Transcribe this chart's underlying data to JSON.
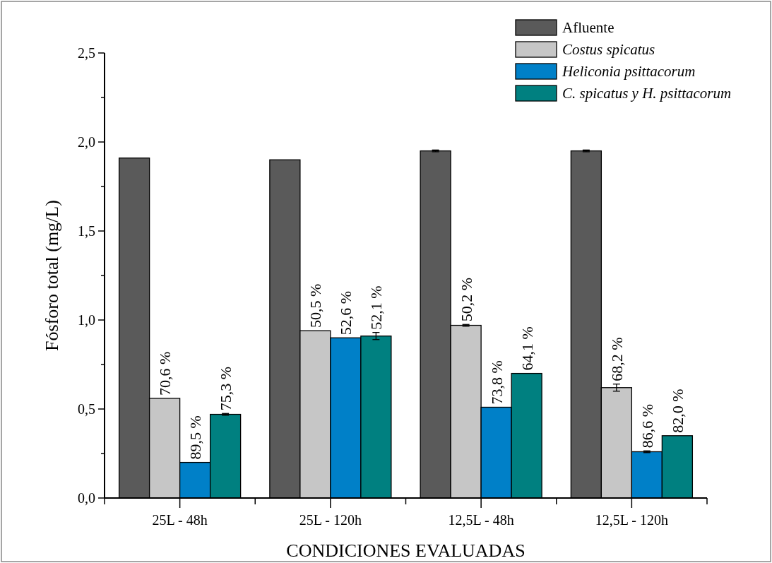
{
  "chart_data": {
    "type": "bar",
    "xlabel": "CONDICIONES EVALUADAS",
    "ylabel": "Fósforo total (mg/L)",
    "categories": [
      "25L - 48h",
      "25L - 120h",
      "12,5L - 48h",
      "12,5L - 120h"
    ],
    "series": [
      {
        "name": "Afluente",
        "color": "#5a5a5a",
        "values": [
          1.91,
          1.9,
          1.95,
          1.95
        ],
        "errors": [
          null,
          null,
          0.005,
          0.005
        ]
      },
      {
        "name": "Costus spicatus",
        "color": "#c6c6c6",
        "values": [
          0.56,
          0.94,
          0.97,
          0.62
        ],
        "errors": [
          null,
          null,
          0.005,
          0.02
        ]
      },
      {
        "name": "Heliconia psittacorum",
        "color": "#0080c8",
        "values": [
          0.2,
          0.9,
          0.51,
          0.26
        ],
        "errors": [
          null,
          null,
          null,
          0.005
        ]
      },
      {
        "name": "C. spicatus y H. psittacorum",
        "color": "#008080",
        "values": [
          0.47,
          0.91,
          0.7,
          0.35
        ],
        "errors": [
          0.005,
          0.02,
          null,
          null
        ]
      }
    ],
    "annotations": [
      {
        "text": "70,6 %",
        "x": "25L - 48h",
        "y": 0.56
      },
      {
        "text": "89,5 %",
        "x": "25L - 48h",
        "y": 0.2
      },
      {
        "text": "75,3 %",
        "x": "25L - 48h",
        "y": 0.47
      },
      {
        "text": "50,5 %",
        "x": "25L - 120h",
        "y": 0.94
      },
      {
        "text": "52,6 %",
        "x": "25L - 120h",
        "y": 0.9
      },
      {
        "text": "52,1 %",
        "x": "25L - 120h",
        "y": 0.91
      },
      {
        "text": "50,2 %",
        "x": "12,5L - 48h",
        "y": 0.97
      },
      {
        "text": "73,8 %",
        "x": "12,5L - 48h",
        "y": 0.51
      },
      {
        "text": "64,1 %",
        "x": "12,5L - 48h",
        "y": 0.7
      },
      {
        "text": "68,2 %",
        "x": "12,5L - 120h",
        "y": 0.62
      },
      {
        "text": "86,6 %",
        "x": "12,5L - 120h",
        "y": 0.26
      },
      {
        "text": "82,0 %",
        "x": "12,5L - 120h",
        "y": 0.35
      }
    ],
    "ylim": [
      0,
      2.5
    ],
    "yticks": [
      {
        "value": 0,
        "label": "0,0"
      },
      {
        "value": 0.25,
        "label": null
      },
      {
        "value": 0.5,
        "label": "0,5"
      },
      {
        "value": 0.75,
        "label": null
      },
      {
        "value": 1,
        "label": "1,0"
      },
      {
        "value": 1.25,
        "label": null
      },
      {
        "value": 1.5,
        "label": "1,5"
      },
      {
        "value": 1.75,
        "label": null
      },
      {
        "value": 2,
        "label": "2,0"
      },
      {
        "value": 2.25,
        "label": null
      },
      {
        "value": 2.5,
        "label": "2,5"
      }
    ],
    "legend": "top right"
  }
}
